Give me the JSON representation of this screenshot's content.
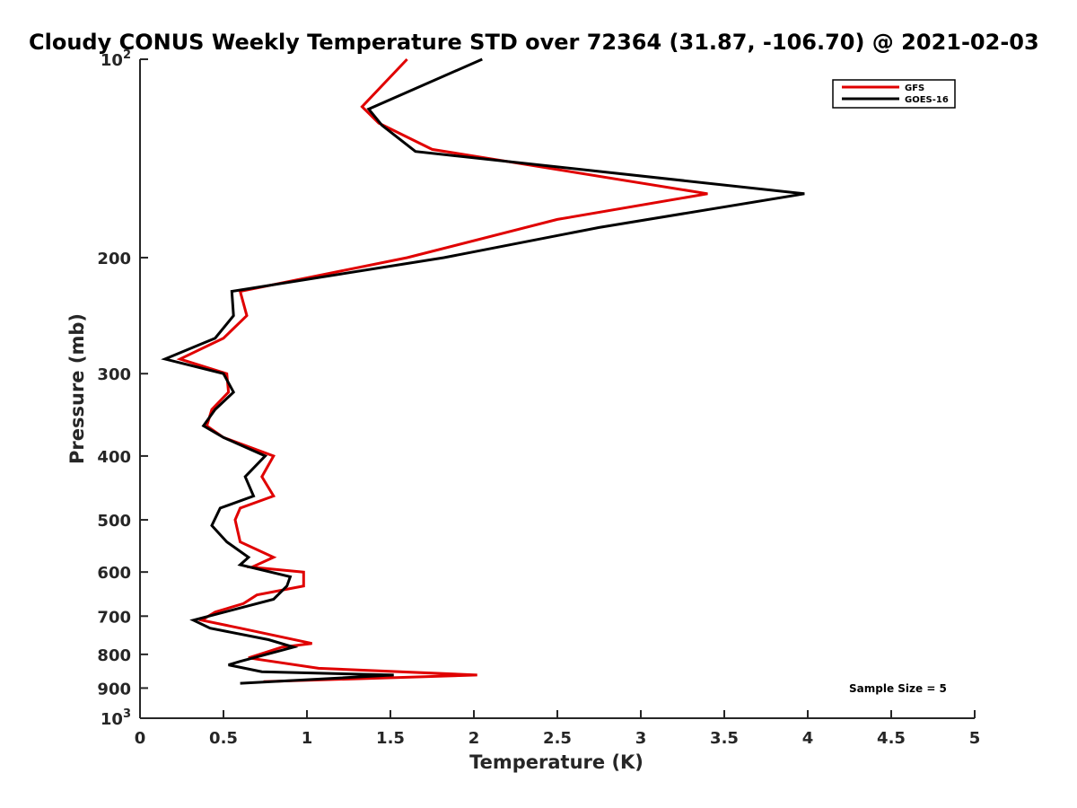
{
  "chart_data": {
    "type": "line",
    "title": "Cloudy CONUS Weekly Temperature STD over 72364 (31.87, -106.70) @ 2021-02-03",
    "xlabel": "Temperature (K)",
    "ylabel": "Pressure (mb)",
    "xlim": [
      0,
      5
    ],
    "ylim": [
      100,
      1000
    ],
    "y_scale": "log",
    "y_reversed": true,
    "grid": false,
    "legend_position": "top-right",
    "x_ticks": [
      0,
      0.5,
      1,
      1.5,
      2,
      2.5,
      3,
      3.5,
      4,
      4.5,
      5
    ],
    "x_tick_labels": [
      "0",
      "0.5",
      "1",
      "1.5",
      "2",
      "2.5",
      "3",
      "3.5",
      "4",
      "4.5",
      "5"
    ],
    "y_ticks": [
      100,
      200,
      300,
      400,
      500,
      600,
      700,
      800,
      900,
      1000
    ],
    "y_tick_labels": [
      {
        "base": "10",
        "exp": "2"
      },
      {
        "base": "200",
        "exp": ""
      },
      {
        "base": "300",
        "exp": ""
      },
      {
        "base": "400",
        "exp": ""
      },
      {
        "base": "500",
        "exp": ""
      },
      {
        "base": "600",
        "exp": ""
      },
      {
        "base": "700",
        "exp": ""
      },
      {
        "base": "800",
        "exp": ""
      },
      {
        "base": "900",
        "exp": ""
      },
      {
        "base": "10",
        "exp": "3"
      }
    ],
    "annotation": "Sample Size = 5",
    "series": [
      {
        "name": "GFS",
        "color": "#e00000",
        "points": [
          [
            1.6,
            100
          ],
          [
            1.33,
            118
          ],
          [
            1.43,
            125
          ],
          [
            1.75,
            137
          ],
          [
            3.4,
            160
          ],
          [
            2.5,
            175
          ],
          [
            1.6,
            200
          ],
          [
            0.6,
            225
          ],
          [
            0.64,
            245
          ],
          [
            0.5,
            265
          ],
          [
            0.24,
            285
          ],
          [
            0.52,
            300
          ],
          [
            0.53,
            320
          ],
          [
            0.43,
            340
          ],
          [
            0.4,
            360
          ],
          [
            0.5,
            375
          ],
          [
            0.8,
            400
          ],
          [
            0.73,
            430
          ],
          [
            0.8,
            460
          ],
          [
            0.6,
            480
          ],
          [
            0.57,
            500
          ],
          [
            0.6,
            540
          ],
          [
            0.8,
            570
          ],
          [
            0.67,
            590
          ],
          [
            0.98,
            600
          ],
          [
            0.98,
            630
          ],
          [
            0.7,
            650
          ],
          [
            0.62,
            670
          ],
          [
            0.45,
            690
          ],
          [
            0.37,
            710
          ],
          [
            0.6,
            730
          ],
          [
            1.03,
            770
          ],
          [
            0.85,
            780
          ],
          [
            0.65,
            810
          ],
          [
            1.07,
            840
          ],
          [
            2.02,
            860
          ],
          [
            0.74,
            880
          ]
        ]
      },
      {
        "name": "GOES-16",
        "color": "#000000",
        "points": [
          [
            2.05,
            100
          ],
          [
            1.37,
            119
          ],
          [
            1.45,
            126
          ],
          [
            1.65,
            138
          ],
          [
            3.98,
            160
          ],
          [
            2.75,
            180
          ],
          [
            1.82,
            200
          ],
          [
            0.55,
            225
          ],
          [
            0.56,
            245
          ],
          [
            0.45,
            265
          ],
          [
            0.15,
            285
          ],
          [
            0.5,
            300
          ],
          [
            0.56,
            320
          ],
          [
            0.45,
            340
          ],
          [
            0.38,
            360
          ],
          [
            0.5,
            375
          ],
          [
            0.75,
            400
          ],
          [
            0.63,
            430
          ],
          [
            0.68,
            460
          ],
          [
            0.48,
            480
          ],
          [
            0.43,
            510
          ],
          [
            0.52,
            540
          ],
          [
            0.65,
            570
          ],
          [
            0.6,
            585
          ],
          [
            0.9,
            610
          ],
          [
            0.88,
            630
          ],
          [
            0.8,
            660
          ],
          [
            0.32,
            710
          ],
          [
            0.42,
            730
          ],
          [
            0.77,
            760
          ],
          [
            0.92,
            780
          ],
          [
            0.6,
            820
          ],
          [
            0.53,
            830
          ],
          [
            0.73,
            850
          ],
          [
            1.52,
            860
          ],
          [
            0.6,
            885
          ]
        ]
      }
    ]
  }
}
